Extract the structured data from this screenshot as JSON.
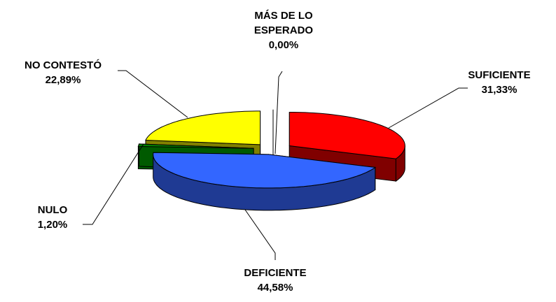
{
  "chart_data": {
    "type": "pie3d",
    "categories": [
      "MÁS DE LO ESPERADO",
      "SUFICIENTE",
      "DEFICIENTE",
      "NULO",
      "NO CONTESTÓ"
    ],
    "values": [
      0,
      31.33,
      44.58,
      1.2,
      22.89
    ],
    "value_labels": [
      "0,00%",
      "31,33%",
      "44,58%",
      "1,20%",
      "22,89%"
    ],
    "colors": [
      "#9999ff",
      "#ff0000",
      "#3366ff",
      "#008000",
      "#ffff00"
    ],
    "side_colors": [
      "#4c4c80",
      "#800000",
      "#1f3a93",
      "#005a00",
      "#808000"
    ],
    "exploded": true
  }
}
